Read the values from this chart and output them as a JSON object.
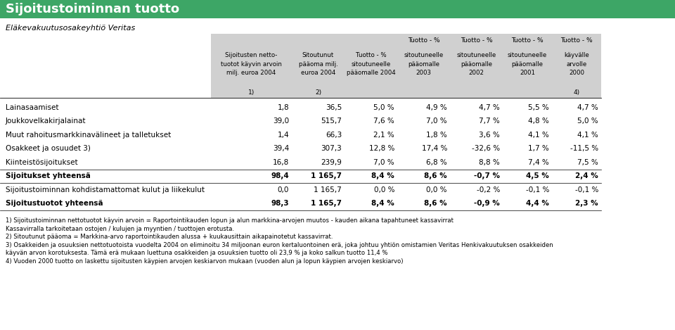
{
  "title": "Sijoitustoiminnan tuotto",
  "subtitle": "Eläkevakuutusosakeyhtiö Veritas",
  "header_bg": "#3da666",
  "header_text_color": "#ffffff",
  "table_header_bg": "#d0d0d0",
  "col_header_row1": [
    "",
    "",
    "",
    "Tuotto - %",
    "Tuotto - %",
    "Tuotto - %",
    "Tuotto - %"
  ],
  "col_header_row2": [
    "Sijoitusten netto-\ntuotot käyvin arvoin\nmilj. euroa 2004",
    "Sitoutunut\npääoma milj.\neuroa 2004",
    "Tuotto - %\nsitoutuneelle\npääomalle 2004",
    "sitoutuneelle\npääomalle\n2003",
    "sitoutuneelle\npääomalle\n2002",
    "sitoutuneelle\npääomalle\n2001",
    "käyvälle\narvolle\n2000"
  ],
  "col_header_row3": [
    "1)",
    "2)",
    "",
    "",
    "",
    "",
    "4)"
  ],
  "rows": [
    {
      "label": "Lainasaamiset",
      "bold": false,
      "values": [
        "1,8",
        "36,5",
        "5,0 %",
        "4,9 %",
        "4,7 %",
        "5,5 %",
        "4,7 %"
      ]
    },
    {
      "label": "Joukkovelkakirjalainat",
      "bold": false,
      "values": [
        "39,0",
        "515,7",
        "7,6 %",
        "7,0 %",
        "7,7 %",
        "4,8 %",
        "5,0 %"
      ]
    },
    {
      "label": "Muut rahoitusmarkkinavälineet ja talletukset",
      "bold": false,
      "values": [
        "1,4",
        "66,3",
        "2,1 %",
        "1,8 %",
        "3,6 %",
        "4,1 %",
        "4,1 %"
      ]
    },
    {
      "label": "Osakkeet ja osuudet 3)",
      "bold": false,
      "values": [
        "39,4",
        "307,3",
        "12,8 %",
        "17,4 %",
        "-32,6 %",
        "1,7 %",
        "-11,5 %"
      ]
    },
    {
      "label": "Kiinteistösijoitukset",
      "bold": false,
      "values": [
        "16,8",
        "239,9",
        "7,0 %",
        "6,8 %",
        "8,8 %",
        "7,4 %",
        "7,5 %"
      ]
    },
    {
      "label": "Sijoitukset yhteensä",
      "bold": true,
      "values": [
        "98,4",
        "1 165,7",
        "8,4 %",
        "8,6 %",
        "-0,7 %",
        "4,5 %",
        "2,4 %"
      ]
    },
    {
      "label": "Sijoitustoiminnan kohdistamattomat kulut ja liikekulut",
      "bold": false,
      "values": [
        "0,0",
        "1 165,7",
        "0,0 %",
        "0,0 %",
        "-0,2 %",
        "-0,1 %",
        "-0,1 %"
      ]
    },
    {
      "label": "Sijoitustuotot yhteensä",
      "bold": true,
      "values": [
        "98,3",
        "1 165,7",
        "8,4 %",
        "8,6 %",
        "-0,9 %",
        "4,4 %",
        "2,3 %"
      ]
    }
  ],
  "footnotes": [
    "1) Sijoitustoiminnan nettotuotot käyvin arvoin = Raportointikauden lopun ja alun markkina-arvojen muutos - kauden aikana tapahtuneet kassavirrat",
    "Kassavirralla tarkoitetaan ostojen / kulujen ja myyntien / tuottojen erotusta.",
    "2) Sitoutunut pääoma = Markkina-arvo raportointikauden alussa + kuukausittain aikapainotetut kassavirrat.",
    "3) Osakkeiden ja osuuksien nettotuotoista vuodelta 2004 on eliminoitu 34 miljoonan euron kertaluontoinen erä, joka johtuu yhtiön omistamien Veritas Henkivakuutuksen osakkeiden",
    "käyvän arvon korotuksesta. Tämä erä mukaan luettuna osakkeiden ja osuuksien tuotto oli 23,9 % ja koko salkun tuotto 11,4 %",
    "4) Vuoden 2000 tuotto on laskettu sijoitusten käypien arvojen keskiarvon mukaan (vuoden alun ja lopun käypien arvojen keskiarvo)"
  ]
}
